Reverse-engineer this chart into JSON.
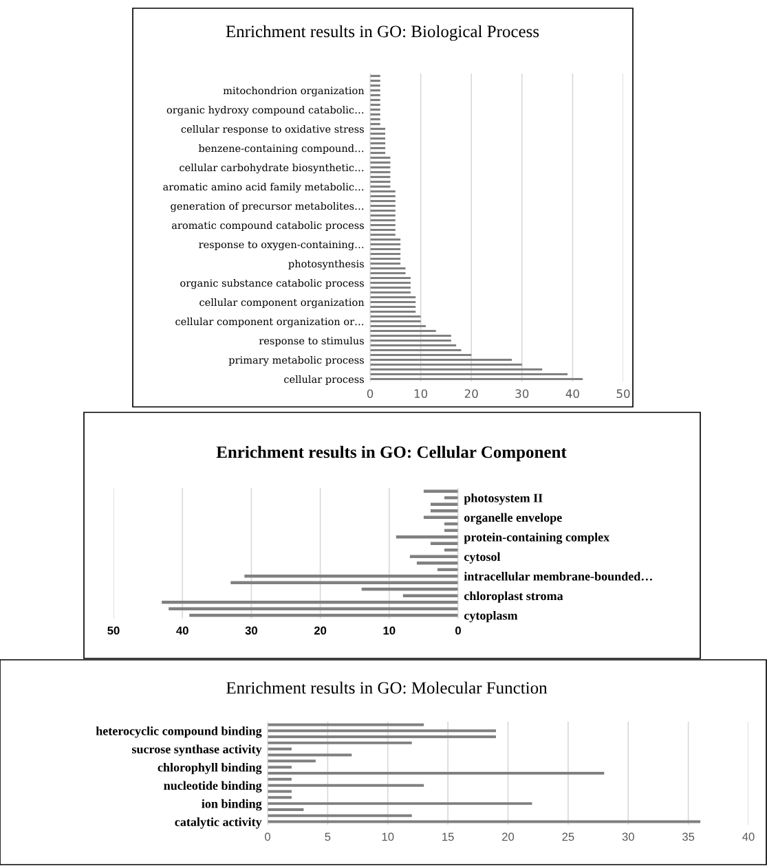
{
  "chart_data": [
    {
      "type": "bar",
      "orientation": "horizontal",
      "title": "Enrichment results in GO: Biological Process",
      "categories": [
        null,
        null,
        null,
        "mitochondrion organization",
        null,
        null,
        null,
        "organic hydroxy compound catabolic…",
        null,
        null,
        null,
        "cellular response to oxidative stress",
        null,
        null,
        null,
        "benzene-containing compound…",
        null,
        null,
        null,
        "cellular carbohydrate biosynthetic…",
        null,
        null,
        null,
        "aromatic amino acid family metabolic…",
        null,
        null,
        null,
        "generation of precursor metabolites…",
        null,
        null,
        null,
        "aromatic compound catabolic process",
        null,
        null,
        null,
        "response to oxygen-containing…",
        null,
        null,
        null,
        "photosynthesis",
        null,
        null,
        null,
        "organic substance catabolic process",
        null,
        null,
        null,
        "cellular component organization",
        null,
        null,
        null,
        "cellular component organization or…",
        null,
        null,
        null,
        "response to stimulus",
        null,
        null,
        null,
        "primary metabolic process",
        null,
        null,
        null,
        "cellular process"
      ],
      "values": [
        2,
        2,
        2,
        2,
        2,
        2,
        2,
        2,
        2,
        2,
        2,
        3,
        3,
        3,
        3,
        3,
        3,
        4,
        4,
        4,
        4,
        4,
        4,
        4,
        5,
        5,
        5,
        5,
        5,
        5,
        5,
        5,
        5,
        5,
        6,
        6,
        6,
        6,
        6,
        6,
        7,
        7,
        8,
        8,
        8,
        8,
        9,
        9,
        9,
        9,
        10,
        10,
        11,
        13,
        16,
        16,
        17,
        18,
        20,
        28,
        30,
        34,
        39,
        42
      ],
      "color": "#808080",
      "xlim": [
        0,
        50
      ],
      "xticks": [
        0,
        10,
        20,
        30,
        40,
        50
      ],
      "grid": "x"
    },
    {
      "type": "bar",
      "orientation": "horizontal",
      "title": "Enrichment results in GO: Cellular Component",
      "categories": [
        null,
        "photosystem II",
        null,
        null,
        "organelle envelope",
        null,
        null,
        "protein-containing complex",
        null,
        null,
        "cytosol",
        null,
        null,
        "intracellular membrane-bounded…",
        null,
        null,
        "chloroplast stroma",
        null,
        null,
        "cytoplasm"
      ],
      "values": [
        5,
        2,
        4,
        4,
        5,
        2,
        2,
        9,
        4,
        2,
        7,
        6,
        3,
        31,
        33,
        14,
        8,
        43,
        42,
        39
      ],
      "color": "#808080",
      "xlim": [
        50,
        0
      ],
      "xticks": [
        0,
        10,
        20,
        30,
        40,
        50
      ],
      "grid": "x"
    },
    {
      "type": "bar",
      "orientation": "horizontal",
      "title": "Enrichment results in GO: Molecular Function",
      "categories": [
        null,
        "heterocyclic compound binding",
        null,
        null,
        "sucrose synthase activity",
        null,
        null,
        "chlorophyll binding",
        null,
        null,
        "nucleotide binding",
        null,
        null,
        "ion binding",
        null,
        null,
        "catalytic activity"
      ],
      "values": [
        13,
        19,
        19,
        12,
        2,
        7,
        4,
        2,
        28,
        2,
        13,
        2,
        2,
        22,
        3,
        12,
        36
      ],
      "color": "#808080",
      "xlim": [
        0,
        40
      ],
      "xticks": [
        0,
        5,
        10,
        15,
        20,
        25,
        30,
        35,
        40
      ],
      "grid": "x"
    }
  ]
}
